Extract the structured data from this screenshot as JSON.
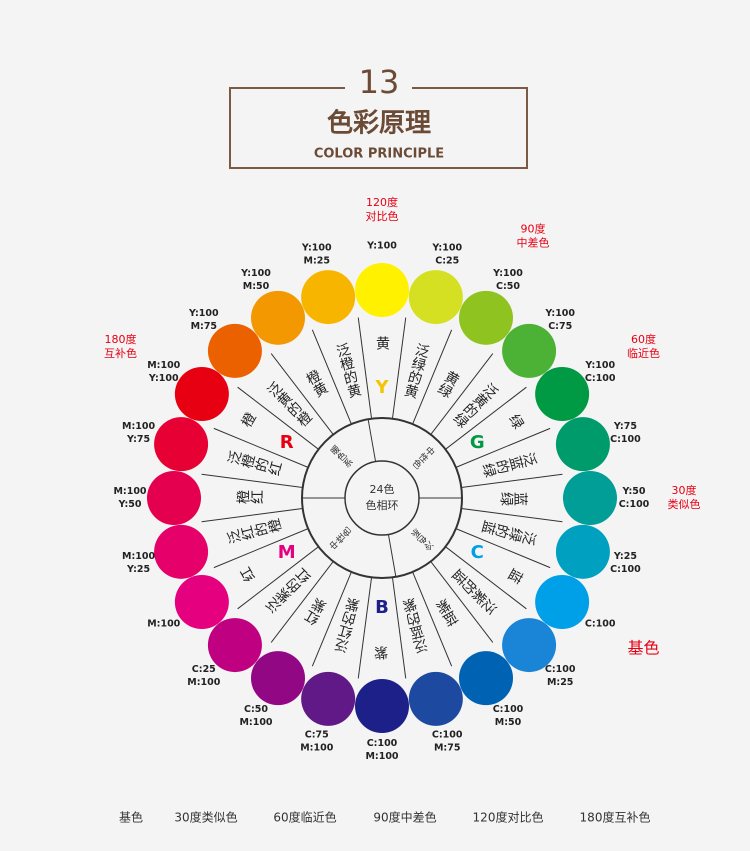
{
  "header": {
    "number": "13",
    "title": "色彩原理",
    "subtitle": "COLOR PRINCIPLE"
  },
  "wheel": {
    "center": [
      "24色",
      "色相环"
    ],
    "zones": [
      "暖色系",
      "中性色",
      "冷色系",
      "中性色"
    ],
    "swatches": [
      {
        "color": "#fff100",
        "code": [
          "Y:100"
        ],
        "name": "黄",
        "letter": "Y",
        "letter_color": "#f5c400",
        "note": [
          "120度",
          "对比色"
        ]
      },
      {
        "color": "#d4e021",
        "code": [
          "Y:100",
          "C:25"
        ],
        "name": "泛绿的黄"
      },
      {
        "color": "#8fc31f",
        "code": [
          "Y:100",
          "C:50"
        ],
        "name": "黄绿",
        "note": [
          "90度",
          "中差色"
        ]
      },
      {
        "color": "#4cb236",
        "code": [
          "Y:100",
          "C:75"
        ],
        "name": "泛黄的绿"
      },
      {
        "color": "#009944",
        "code": [
          "Y:100",
          "C:100"
        ],
        "name": "绿",
        "letter": "G",
        "letter_color": "#009944",
        "note": [
          "60度",
          "临近色"
        ]
      },
      {
        "color": "#009b6b",
        "code": [
          "Y:75",
          "C:100"
        ],
        "name": "泛蓝的绿"
      },
      {
        "color": "#009e96",
        "code": [
          "Y:50",
          "C:100"
        ],
        "name": "蓝绿",
        "note": [
          "30度",
          "类似色"
        ]
      },
      {
        "color": "#00a0c1",
        "code": [
          "Y:25",
          "C:100"
        ],
        "name": "泛绿的蓝"
      },
      {
        "color": "#00a0e9",
        "code": [
          "C:100"
        ],
        "name": "蓝",
        "letter": "C",
        "letter_color": "#00a0e9",
        "note": [
          "基色"
        ]
      },
      {
        "color": "#1a85d6",
        "code": [
          "C:100",
          "M:25"
        ],
        "name": "泛紫的蓝"
      },
      {
        "color": "#0062b3",
        "code": [
          "C:100",
          "M:50"
        ],
        "name": "蓝紫"
      },
      {
        "color": "#1d4aa0",
        "code": [
          "C:100",
          "M:75"
        ],
        "name": "泛蓝的紫"
      },
      {
        "color": "#1d2088",
        "code": [
          "C:100",
          "M:100"
        ],
        "name": "紫",
        "letter": "B",
        "letter_color": "#1d2088"
      },
      {
        "color": "#601986",
        "code": [
          "C:75",
          "M:100"
        ],
        "name": "泛红的紫"
      },
      {
        "color": "#920783",
        "code": [
          "C:50",
          "M:100"
        ],
        "name": "红紫"
      },
      {
        "color": "#be0081",
        "code": [
          "C:25",
          "M:100"
        ],
        "name": "泛紫的红"
      },
      {
        "color": "#e4007f",
        "code": [
          "M:100"
        ],
        "name": "红",
        "letter": "M",
        "letter_color": "#e4007f"
      },
      {
        "color": "#e5006a",
        "code": [
          "M:100",
          "Y:25"
        ],
        "name": "泛红的橙"
      },
      {
        "color": "#e5004f",
        "code": [
          "M:100",
          "Y:50"
        ],
        "name": "橙红"
      },
      {
        "color": "#e60033",
        "code": [
          "M:100",
          "Y:75"
        ],
        "name": "泛橙的红"
      },
      {
        "color": "#e60012",
        "code": [
          "M:100",
          "Y:100"
        ],
        "name": "橙",
        "letter": "R",
        "letter_color": "#e60012",
        "note": [
          "180度",
          "互补色"
        ]
      },
      {
        "color": "#eb6100",
        "code": [
          "Y:100",
          "M:75"
        ],
        "name": "泛黄的橙"
      },
      {
        "color": "#f39800",
        "code": [
          "Y:100",
          "M:50"
        ],
        "name": "橙黄"
      },
      {
        "color": "#f8b500",
        "code": [
          "Y:100",
          "M:25"
        ],
        "name": "泛橙的黄"
      }
    ]
  },
  "legend": [
    "基色",
    "30度类似色",
    "60度临近色",
    "90度中差色",
    "120度对比色",
    "180度互补色"
  ]
}
